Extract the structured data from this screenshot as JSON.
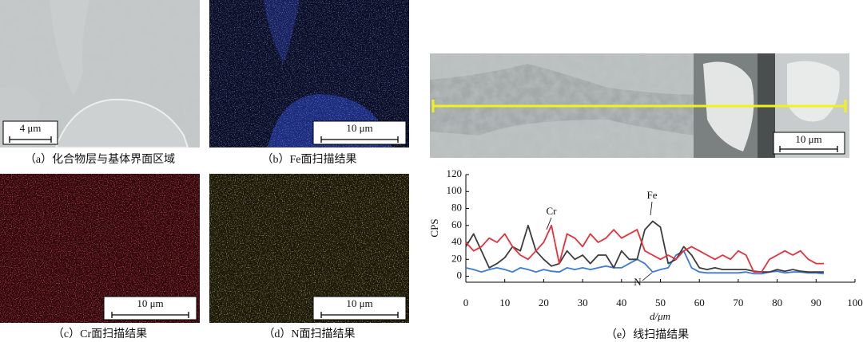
{
  "panels": [
    {
      "caption": "（a）化合物层与基体界面区域",
      "scale": "4 μm"
    },
    {
      "caption": "（b）Fe面扫描结果",
      "scale": "10 μm"
    },
    {
      "caption": "（c）Cr面扫描结果",
      "scale": "10 μm"
    },
    {
      "caption": "（d）N面扫描结果",
      "scale": "10 μm"
    },
    {
      "caption": "（e）线扫描结果",
      "scale": "10 μm"
    }
  ],
  "chart_data": {
    "type": "line",
    "xlabel": "d/μm",
    "ylabel": "CPS",
    "annotations": [
      "Cr",
      "Fe",
      "N"
    ],
    "x": [
      0,
      2,
      4,
      6,
      8,
      10,
      12,
      14,
      16,
      18,
      20,
      22,
      24,
      26,
      28,
      30,
      32,
      34,
      36,
      38,
      40,
      42,
      44,
      46,
      48,
      50,
      52,
      54,
      56,
      58,
      60,
      62,
      64,
      66,
      68,
      70,
      72,
      74,
      76,
      78,
      80,
      82,
      84,
      86,
      88,
      90,
      92
    ],
    "series": [
      {
        "name": "Fe",
        "color": "#3c3c3c",
        "values": [
          35,
          50,
          30,
          10,
          15,
          22,
          35,
          30,
          60,
          30,
          20,
          12,
          15,
          30,
          20,
          25,
          15,
          25,
          25,
          10,
          30,
          20,
          20,
          55,
          65,
          58,
          15,
          20,
          35,
          25,
          10,
          8,
          10,
          8,
          8,
          8,
          8,
          6,
          5,
          5,
          8,
          6,
          8,
          6,
          5,
          5,
          5
        ]
      },
      {
        "name": "Cr",
        "color": "#e8303a",
        "values": [
          40,
          30,
          35,
          45,
          40,
          50,
          35,
          25,
          20,
          30,
          40,
          60,
          15,
          50,
          45,
          35,
          50,
          40,
          45,
          55,
          45,
          50,
          55,
          30,
          25,
          20,
          25,
          20,
          30,
          35,
          30,
          25,
          20,
          25,
          20,
          30,
          25,
          5,
          5,
          20,
          25,
          30,
          25,
          30,
          20,
          15,
          15
        ]
      },
      {
        "name": "N",
        "color": "#3a7bd5",
        "values": [
          10,
          8,
          5,
          8,
          10,
          8,
          5,
          10,
          8,
          5,
          8,
          6,
          5,
          10,
          8,
          10,
          8,
          10,
          12,
          10,
          10,
          15,
          20,
          15,
          5,
          8,
          10,
          25,
          30,
          10,
          5,
          4,
          4,
          4,
          4,
          4,
          5,
          3,
          3,
          5,
          6,
          4,
          5,
          5,
          4,
          4,
          3
        ]
      }
    ],
    "xlim": [
      0,
      100
    ],
    "xticks": [
      0,
      10,
      20,
      30,
      40,
      50,
      60,
      70,
      80,
      90,
      100
    ],
    "ylim": [
      -7,
      120
    ],
    "yticks": [
      0,
      20,
      40,
      60,
      80,
      100,
      120
    ]
  }
}
